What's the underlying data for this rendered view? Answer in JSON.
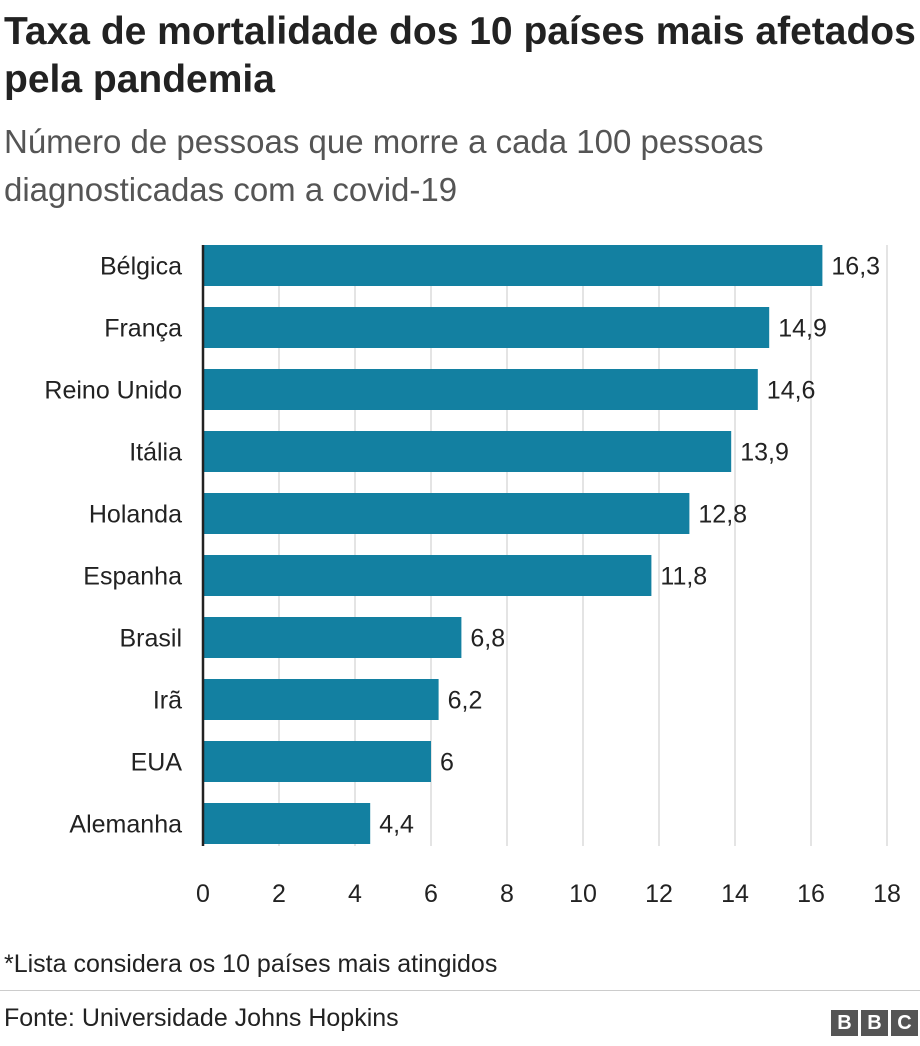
{
  "chart_data": {
    "type": "bar",
    "orientation": "horizontal",
    "title": "Taxa de mortalidade dos 10 países mais afetados pela pandemia",
    "subtitle": "Número de pessoas que morre a cada 100 pessoas diagnosticadas com a covid-19",
    "categories": [
      "Bélgica",
      "França",
      "Reino Unido",
      "Itália",
      "Holanda",
      "Espanha",
      "Brasil",
      "Irã",
      "EUA",
      "Alemanha"
    ],
    "values": [
      16.3,
      14.9,
      14.6,
      13.9,
      12.8,
      11.8,
      6.8,
      6.2,
      6,
      4.4
    ],
    "value_labels": [
      "16,3",
      "14,9",
      "14,6",
      "13,9",
      "12,8",
      "11,8",
      "6,8",
      "6,2",
      "6",
      "4,4"
    ],
    "xlim": [
      0,
      18
    ],
    "x_ticks": [
      0,
      2,
      4,
      6,
      8,
      10,
      12,
      14,
      16,
      18
    ],
    "x_tick_labels": [
      "0",
      "2",
      "4",
      "6",
      "8",
      "10",
      "12",
      "14",
      "16",
      "18"
    ],
    "xlabel": "",
    "ylabel": "",
    "grid": true,
    "bar_color": "#1380A1"
  },
  "footer": {
    "note": "*Lista considera os 10 países mais atingidos",
    "source": "Fonte: Universidade Johns Hopkins",
    "logo_letters": [
      "B",
      "B",
      "C"
    ]
  }
}
